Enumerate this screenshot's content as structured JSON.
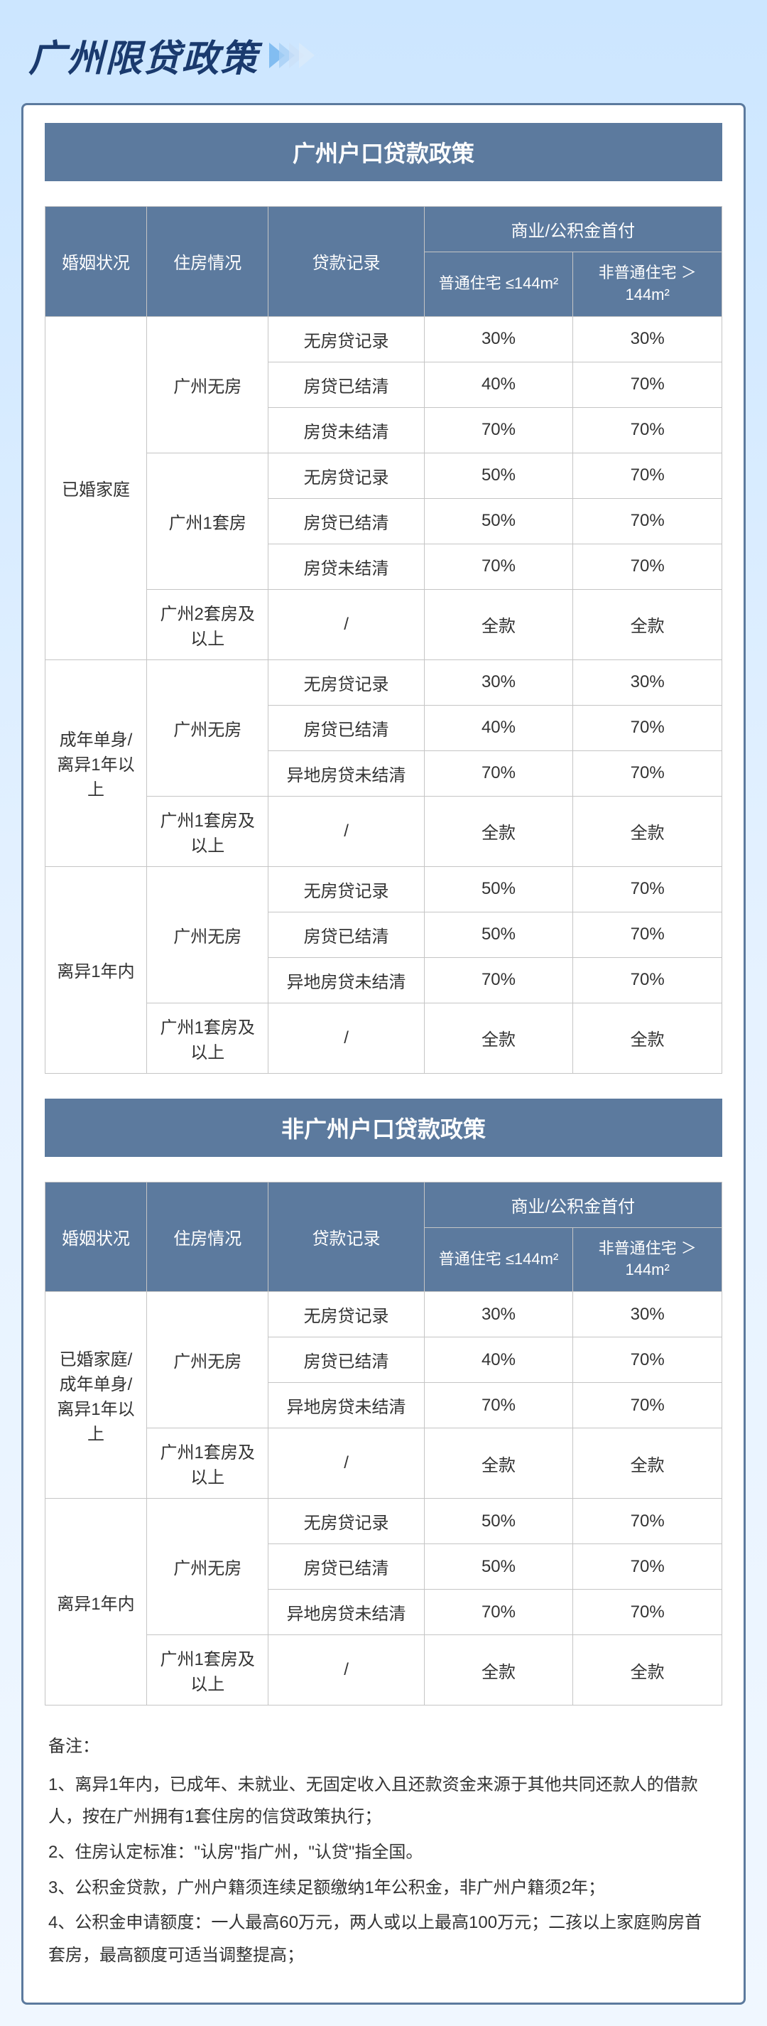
{
  "page_title": "广州限贷政策",
  "colors": {
    "header_bg": "#5c7a9e",
    "header_text": "#ffffff",
    "border": "#c5c5c5",
    "card_border": "#5c7a9e",
    "title_color": "#1a3a6e",
    "body_text": "#333333"
  },
  "section1": {
    "title": "广州户口贷款政策",
    "headers": {
      "col1": "婚姻状况",
      "col2": "住房情况",
      "col3": "贷款记录",
      "col4_group": "商业/公积金首付",
      "col4": "普通住宅 ≤144m²",
      "col5": "非普通住宅 ＞144m²"
    },
    "groups": [
      {
        "marital": "已婚家庭",
        "housings": [
          {
            "housing": "广州无房",
            "rows": [
              {
                "loan": "无房贷记录",
                "v1": "30%",
                "v2": "30%"
              },
              {
                "loan": "房贷已结清",
                "v1": "40%",
                "v2": "70%"
              },
              {
                "loan": "房贷未结清",
                "v1": "70%",
                "v2": "70%"
              }
            ]
          },
          {
            "housing": "广州1套房",
            "rows": [
              {
                "loan": "无房贷记录",
                "v1": "50%",
                "v2": "70%"
              },
              {
                "loan": "房贷已结清",
                "v1": "50%",
                "v2": "70%"
              },
              {
                "loan": "房贷未结清",
                "v1": "70%",
                "v2": "70%"
              }
            ]
          },
          {
            "housing": "广州2套房及以上",
            "rows": [
              {
                "loan": "/",
                "v1": "全款",
                "v2": "全款"
              }
            ]
          }
        ]
      },
      {
        "marital": "成年单身/离异1年以上",
        "housings": [
          {
            "housing": "广州无房",
            "rows": [
              {
                "loan": "无房贷记录",
                "v1": "30%",
                "v2": "30%"
              },
              {
                "loan": "房贷已结清",
                "v1": "40%",
                "v2": "70%"
              },
              {
                "loan": "异地房贷未结清",
                "v1": "70%",
                "v2": "70%"
              }
            ]
          },
          {
            "housing": "广州1套房及以上",
            "rows": [
              {
                "loan": "/",
                "v1": "全款",
                "v2": "全款"
              }
            ]
          }
        ]
      },
      {
        "marital": "离异1年内",
        "housings": [
          {
            "housing": "广州无房",
            "rows": [
              {
                "loan": "无房贷记录",
                "v1": "50%",
                "v2": "70%"
              },
              {
                "loan": "房贷已结清",
                "v1": "50%",
                "v2": "70%"
              },
              {
                "loan": "异地房贷未结清",
                "v1": "70%",
                "v2": "70%"
              }
            ]
          },
          {
            "housing": "广州1套房及以上",
            "rows": [
              {
                "loan": "/",
                "v1": "全款",
                "v2": "全款"
              }
            ]
          }
        ]
      }
    ]
  },
  "section2": {
    "title": "非广州户口贷款政策",
    "headers": {
      "col1": "婚姻状况",
      "col2": "住房情况",
      "col3": "贷款记录",
      "col4_group": "商业/公积金首付",
      "col4": "普通住宅 ≤144m²",
      "col5": "非普通住宅 ＞144m²"
    },
    "groups": [
      {
        "marital": "已婚家庭/成年单身/离异1年以上",
        "housings": [
          {
            "housing": "广州无房",
            "rows": [
              {
                "loan": "无房贷记录",
                "v1": "30%",
                "v2": "30%"
              },
              {
                "loan": "房贷已结清",
                "v1": "40%",
                "v2": "70%"
              },
              {
                "loan": "异地房贷未结清",
                "v1": "70%",
                "v2": "70%"
              }
            ]
          },
          {
            "housing": "广州1套房及以上",
            "rows": [
              {
                "loan": "/",
                "v1": "全款",
                "v2": "全款"
              }
            ]
          }
        ]
      },
      {
        "marital": "离异1年内",
        "housings": [
          {
            "housing": "广州无房",
            "rows": [
              {
                "loan": "无房贷记录",
                "v1": "50%",
                "v2": "70%"
              },
              {
                "loan": "房贷已结清",
                "v1": "50%",
                "v2": "70%"
              },
              {
                "loan": "异地房贷未结清",
                "v1": "70%",
                "v2": "70%"
              }
            ]
          },
          {
            "housing": "广州1套房及以上",
            "rows": [
              {
                "loan": "/",
                "v1": "全款",
                "v2": "全款"
              }
            ]
          }
        ]
      }
    ]
  },
  "notes": {
    "title": "备注：",
    "items": [
      "1、离异1年内，已成年、未就业、无固定收入且还款资金来源于其他共同还款人的借款人，按在广州拥有1套住房的信贷政策执行；",
      "2、住房认定标准：\"认房\"指广州，\"认贷\"指全国。",
      "3、公积金贷款，广州户籍须连续足额缴纳1年公积金，非广州户籍须2年；",
      "4、公积金申请额度：一人最高60万元，两人或以上最高100万元；二孩以上家庭购房首套房，最高额度可适当调整提高；"
    ]
  }
}
